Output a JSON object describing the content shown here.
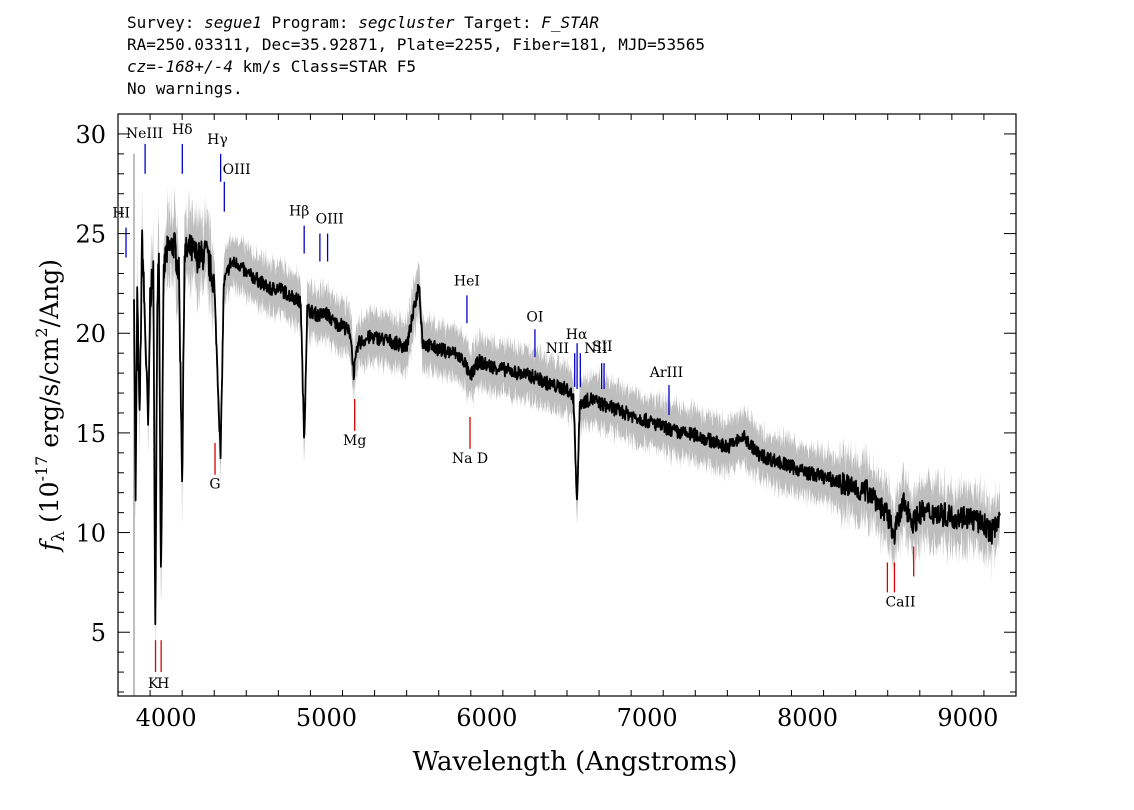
{
  "header": {
    "line1": {
      "survey_label": "Survey: ",
      "survey": "segue1",
      "program_label": " Program: ",
      "program": "segcluster",
      "target_label": " Target: ",
      "target": "F_STAR"
    },
    "line2": "RA=250.03311, Dec=35.92871, Plate=2255, Fiber=181, MJD=53565",
    "line3": {
      "cz": "cz=-168+/-4",
      "rest": " km/s Class=STAR F5"
    },
    "line4": "No warnings."
  },
  "chart_data": {
    "type": "line",
    "xlabel": "Wavelength (Angstroms)",
    "ylabel": "f_λ (10^-17 erg/s/cm^2/Ang)",
    "xlim": [
      3700,
      9300
    ],
    "ylim": [
      1.8,
      31
    ],
    "x_ticks": [
      4000,
      5000,
      6000,
      7000,
      8000,
      9000
    ],
    "y_ticks": [
      5,
      10,
      15,
      20,
      25,
      30
    ],
    "x_minor_step": 200,
    "y_minor_step": 1,
    "colors": {
      "flux": "#000000",
      "error_band": "#bebebe",
      "emission_lines": "#0000cc",
      "absorption_lines": "#dd0000"
    },
    "series": [
      {
        "points": [
          [
            3800,
            22.5
          ],
          [
            3810,
            11.2
          ],
          [
            3820,
            22.0
          ],
          [
            3835,
            15.5
          ],
          [
            3850,
            24.8
          ],
          [
            3870,
            20.0
          ],
          [
            3889,
            15.0
          ],
          [
            3900,
            21.8
          ],
          [
            3920,
            23.0
          ],
          [
            3933,
            4.5
          ],
          [
            3945,
            22.0
          ],
          [
            3955,
            24.5
          ],
          [
            3968,
            7.3
          ],
          [
            3985,
            23.0
          ],
          [
            4000,
            24.0
          ],
          [
            4050,
            24.5
          ],
          [
            4080,
            23.0
          ],
          [
            4101,
            12.6
          ],
          [
            4115,
            24.0
          ],
          [
            4150,
            24.2
          ],
          [
            4200,
            23.8
          ],
          [
            4250,
            24.0
          ],
          [
            4300,
            22.5
          ],
          [
            4340,
            13.8
          ],
          [
            4360,
            22.5
          ],
          [
            4400,
            23.5
          ],
          [
            4450,
            23.5
          ],
          [
            4500,
            23.0
          ],
          [
            4550,
            22.8
          ],
          [
            4600,
            22.5
          ],
          [
            4650,
            22.2
          ],
          [
            4700,
            22.3
          ],
          [
            4750,
            22.0
          ],
          [
            4800,
            21.8
          ],
          [
            4840,
            21.5
          ],
          [
            4861,
            14.5
          ],
          [
            4880,
            21.2
          ],
          [
            4950,
            20.9
          ],
          [
            5000,
            21.0
          ],
          [
            5050,
            20.5
          ],
          [
            5100,
            20.4
          ],
          [
            5150,
            20.0
          ],
          [
            5170,
            18.0
          ],
          [
            5200,
            19.5
          ],
          [
            5270,
            19.8
          ],
          [
            5300,
            19.8
          ],
          [
            5400,
            19.6
          ],
          [
            5500,
            19.3
          ],
          [
            5577,
            22.5
          ],
          [
            5600,
            19.5
          ],
          [
            5700,
            19.2
          ],
          [
            5800,
            19.0
          ],
          [
            5860,
            18.6
          ],
          [
            5893,
            17.8
          ],
          [
            5950,
            18.6
          ],
          [
            6000,
            18.4
          ],
          [
            6100,
            18.2
          ],
          [
            6200,
            18.0
          ],
          [
            6300,
            17.8
          ],
          [
            6400,
            17.4
          ],
          [
            6500,
            17.2
          ],
          [
            6540,
            16.8
          ],
          [
            6563,
            11.5
          ],
          [
            6580,
            16.5
          ],
          [
            6650,
            16.7
          ],
          [
            6700,
            16.5
          ],
          [
            6800,
            16.2
          ],
          [
            6900,
            15.9
          ],
          [
            7000,
            15.6
          ],
          [
            7100,
            15.3
          ],
          [
            7200,
            15.0
          ],
          [
            7300,
            14.9
          ],
          [
            7400,
            14.6
          ],
          [
            7500,
            14.3
          ],
          [
            7600,
            14.8
          ],
          [
            7700,
            13.9
          ],
          [
            7800,
            13.6
          ],
          [
            7900,
            13.3
          ],
          [
            8000,
            13.0
          ],
          [
            8100,
            12.8
          ],
          [
            8200,
            12.5
          ],
          [
            8300,
            12.2
          ],
          [
            8400,
            12.0
          ],
          [
            8498,
            10.8
          ],
          [
            8542,
            10.0
          ],
          [
            8600,
            11.5
          ],
          [
            8662,
            10.5
          ],
          [
            8700,
            11.0
          ],
          [
            8800,
            11.0
          ],
          [
            8900,
            10.8
          ],
          [
            9000,
            10.8
          ],
          [
            9100,
            10.4
          ],
          [
            9150,
            10.0
          ],
          [
            9200,
            11.0
          ]
        ]
      }
    ],
    "emission_lines": [
      {
        "label": "HI",
        "wave": 3750,
        "y_top": 25.3,
        "y_bottom": 23.8
      },
      {
        "label": "NeIII",
        "wave": 3869,
        "y_top": 29.5,
        "y_bottom": 28.0
      },
      {
        "label": "Hδ",
        "wave": 4101,
        "y_top": 29.5,
        "y_bottom": 28.0
      },
      {
        "label": "Hγ",
        "wave": 4340,
        "y_top": 29.0,
        "y_bottom": 27.6
      },
      {
        "label": "OIII",
        "wave": 4363,
        "y_top": 27.6,
        "y_bottom": 26.1
      },
      {
        "label": "Hβ",
        "wave": 4861,
        "y_top": 25.4,
        "y_bottom": 24.0
      },
      {
        "label": "OIII",
        "wave": 4959,
        "y_top": 25.0,
        "y_bottom": 23.6
      },
      {
        "label": "OIII",
        "wave": 5007,
        "y_top": 25.0,
        "y_bottom": 23.6
      },
      {
        "label": "HeI",
        "wave": 5876,
        "y_top": 21.9,
        "y_bottom": 20.5
      },
      {
        "label": "OI",
        "wave": 6300,
        "y_top": 20.2,
        "y_bottom": 18.8
      },
      {
        "label": "NII",
        "wave": 6548,
        "y_top": 19.0,
        "y_bottom": 17.3
      },
      {
        "label": "Hα",
        "wave": 6563,
        "y_top": 19.5,
        "y_bottom": 17.2
      },
      {
        "label": "NII",
        "wave": 6583,
        "y_top": 19.0,
        "y_bottom": 17.3
      },
      {
        "label": "SII",
        "wave": 6716,
        "y_top": 18.5,
        "y_bottom": 17.2
      },
      {
        "label": "SII",
        "wave": 6731,
        "y_top": 18.5,
        "y_bottom": 17.2
      },
      {
        "label": "ArIII",
        "wave": 7136,
        "y_top": 17.4,
        "y_bottom": 15.9
      }
    ],
    "absorption_lines": [
      {
        "label": "K",
        "wave": 3934,
        "y_top": 4.6,
        "y_bottom": 3.0
      },
      {
        "label": "H",
        "wave": 3969,
        "y_top": 4.6,
        "y_bottom": 3.0
      },
      {
        "label": "G",
        "wave": 4305,
        "y_top": 14.5,
        "y_bottom": 12.9
      },
      {
        "label": "Mg",
        "wave": 5176,
        "y_top": 16.7,
        "y_bottom": 15.1
      },
      {
        "label": "Na D",
        "wave": 5895,
        "y_top": 15.8,
        "y_bottom": 14.2
      },
      {
        "label": "CaII",
        "wave": 8498,
        "y_top": 8.5,
        "y_bottom": 7.0
      },
      {
        "label": "CaII",
        "wave": 8542,
        "y_top": 8.5,
        "y_bottom": 7.0
      },
      {
        "label": "CaII",
        "wave": 8662,
        "y_top": 9.3,
        "y_bottom": 7.8
      }
    ],
    "line_labels": [
      {
        "text": "HI",
        "wave": 3720,
        "y": 25.8,
        "color": "#000000"
      },
      {
        "text": "NeIII",
        "wave": 3865,
        "y": 29.8,
        "color": "#000000"
      },
      {
        "text": "Hδ",
        "wave": 4101,
        "y": 30.0,
        "color": "#000000"
      },
      {
        "text": "Hγ",
        "wave": 4320,
        "y": 29.5,
        "color": "#000000"
      },
      {
        "text": "OIII",
        "wave": 4440,
        "y": 28.0,
        "color": "#000000"
      },
      {
        "text": "Hβ",
        "wave": 4830,
        "y": 25.9,
        "color": "#000000"
      },
      {
        "text": "OIII",
        "wave": 5020,
        "y": 25.5,
        "color": "#000000"
      },
      {
        "text": "HeI",
        "wave": 5876,
        "y": 22.4,
        "color": "#000000"
      },
      {
        "text": "OI",
        "wave": 6300,
        "y": 20.6,
        "color": "#000000"
      },
      {
        "text": "NII",
        "wave": 6440,
        "y": 19.0,
        "color": "#000000"
      },
      {
        "text": "Hα",
        "wave": 6560,
        "y": 19.7,
        "color": "#000000"
      },
      {
        "text": "NII",
        "wave": 6680,
        "y": 19.0,
        "color": "#000000"
      },
      {
        "text": "SII",
        "wave": 6720,
        "y": 19.1,
        "color": "#000000"
      },
      {
        "text": "ArIII",
        "wave": 7120,
        "y": 17.8,
        "color": "#000000"
      },
      {
        "text": "K",
        "wave": 3920,
        "y": 2.2,
        "color": "#000000"
      },
      {
        "text": "H",
        "wave": 3982,
        "y": 2.2,
        "color": "#000000"
      },
      {
        "text": "G",
        "wave": 4305,
        "y": 12.2,
        "color": "#000000"
      },
      {
        "text": "Mg",
        "wave": 5176,
        "y": 14.4,
        "color": "#000000"
      },
      {
        "text": "Na D",
        "wave": 5895,
        "y": 13.5,
        "color": "#000000"
      },
      {
        "text": "CaII",
        "wave": 8580,
        "y": 6.3,
        "color": "#000000"
      }
    ]
  }
}
